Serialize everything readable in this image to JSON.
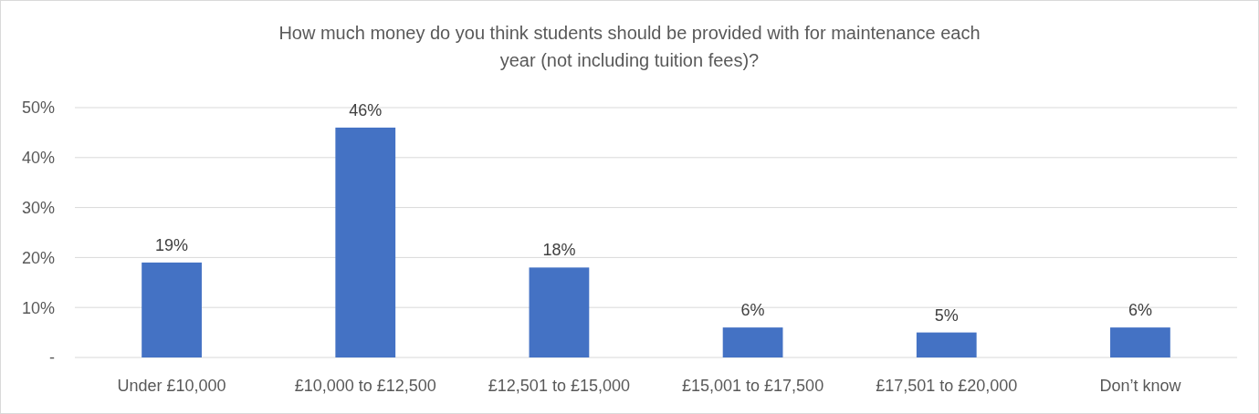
{
  "chart_data": {
    "type": "bar",
    "title": "How much money do you think students should be provided with for maintenance each year (not including tuition fees)?",
    "categories": [
      "Under £10,000",
      "£10,000 to £12,500",
      "£12,501 to £15,000",
      "£15,001 to £17,500",
      "£17,501 to £20,000",
      "Don’t know"
    ],
    "values": [
      19,
      46,
      18,
      6,
      5,
      6
    ],
    "value_labels": [
      "19%",
      "46%",
      "18%",
      "6%",
      "5%",
      "6%"
    ],
    "color": "#4472c4",
    "ylim": [
      0,
      50
    ],
    "yticks": [
      {
        "value": 0,
        "label": "-"
      },
      {
        "value": 10,
        "label": "10%"
      },
      {
        "value": 20,
        "label": "20%"
      },
      {
        "value": 30,
        "label": "30%"
      },
      {
        "value": 40,
        "label": "40%"
      },
      {
        "value": 50,
        "label": "50%"
      }
    ],
    "grid": "y"
  }
}
